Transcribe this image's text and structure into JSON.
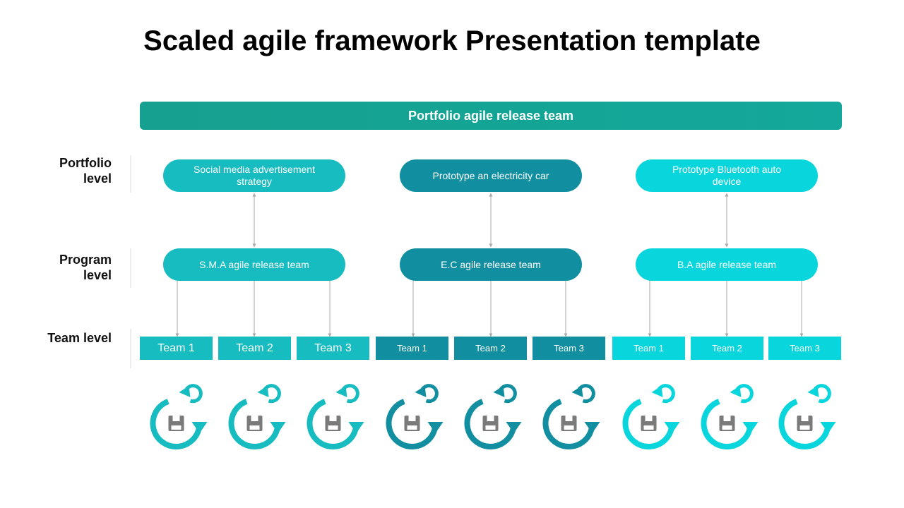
{
  "title": "Scaled agile framework Presentation template",
  "banner": "Portfolio agile release team",
  "levels": [
    "Portfolio level",
    "Program level",
    "Team level"
  ],
  "groups": [
    {
      "portfolio": "Social media advertisement strategy",
      "program": "S.M.A agile release team",
      "teams": [
        "Team 1",
        "Team 2",
        "Team 3"
      ]
    },
    {
      "portfolio": "Prototype an electricity car",
      "program": "E.C agile release team",
      "teams": [
        "Team 1",
        "Team 2",
        "Team 3"
      ]
    },
    {
      "portfolio": "Prototype Bluetooth auto device",
      "program": "B.A agile release team",
      "teams": [
        "Team 1",
        "Team 2",
        "Team 3"
      ]
    }
  ]
}
